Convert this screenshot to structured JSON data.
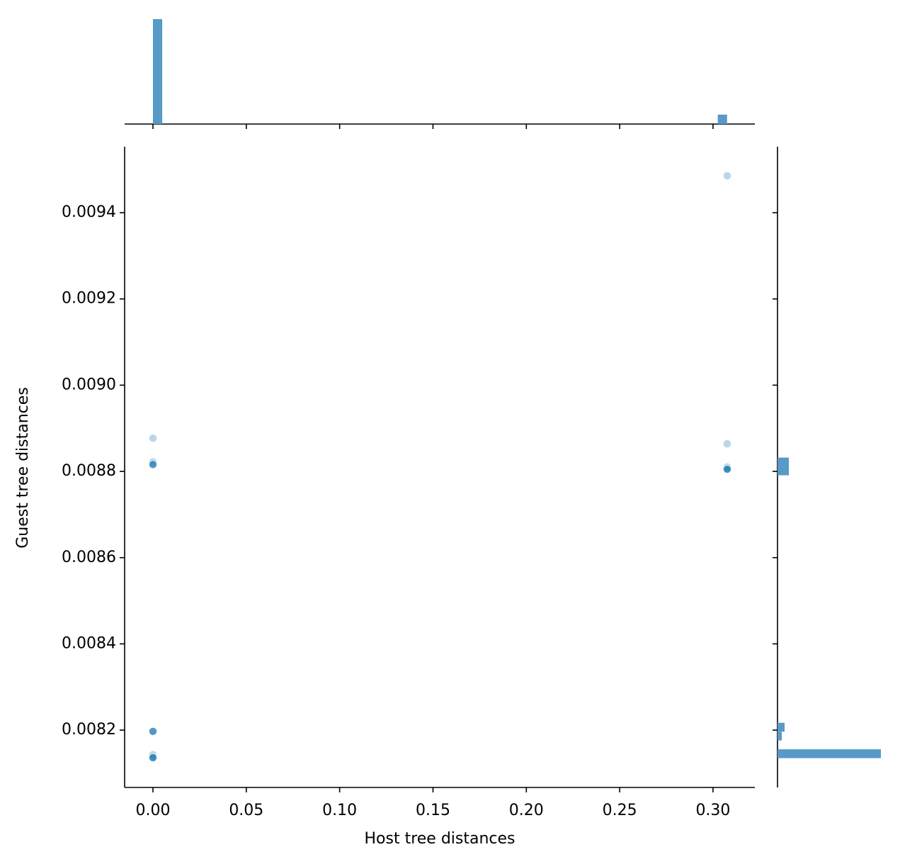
{
  "chart_data": {
    "type": "scatter",
    "xlabel": "Host tree distances",
    "ylabel": "Guest tree distances",
    "x": [
      0,
      0,
      0,
      0,
      0,
      0,
      0,
      0,
      0,
      0,
      0,
      0,
      0,
      0,
      0,
      0,
      0.3076,
      0.3076,
      0.3076,
      0.3076,
      0.3076,
      0.3076,
      0.3076,
      0.3076
    ],
    "y": [
      0.008877,
      0.008822,
      0.008816,
      0.008816,
      0.008816,
      0.008816,
      0.008197,
      0.008197,
      0.008197,
      0.008197,
      0.008143,
      0.008136,
      0.008136,
      0.008136,
      0.008136,
      0.008136,
      0.0094855,
      0.008864,
      0.00881,
      0.008805,
      0.008805,
      0.008805,
      0.008805,
      0.008805
    ],
    "color": "#1f77b4",
    "xlim": [
      -0.01517,
      0.3224
    ],
    "ylim": [
      0.008067,
      0.009553
    ],
    "xticks": [
      {
        "value": 0,
        "label": "0.00"
      },
      0.05,
      {
        "value": 0.1,
        "label": "0.10"
      },
      0.15,
      {
        "value": 0.2,
        "label": "0.20"
      },
      0.25,
      {
        "value": 0.3,
        "label": "0.30"
      }
    ],
    "yticks": [
      0.0082,
      0.0084,
      0.0086,
      0.0088,
      {
        "value": 0.009,
        "label": "0.0090"
      },
      0.0092,
      0.0094
    ],
    "marginal_x": {
      "type": "histogram",
      "color": "#5799c7",
      "count_lim": [
        0,
        89
      ],
      "bins": [
        0,
        0.00496,
        0.00992,
        0.01488,
        0.01984,
        0.0248,
        0.02976,
        0.03472,
        0.03968,
        0.04464,
        0.0496,
        0.05456,
        0.05952,
        0.06448,
        0.06944,
        0.0744,
        0.07936,
        0.08432,
        0.08928,
        0.09424,
        0.0992,
        0.10416,
        0.10912,
        0.11408,
        0.11904,
        0.124,
        0.12896,
        0.13392,
        0.13888,
        0.14384,
        0.1488,
        0.15376,
        0.15872,
        0.16368,
        0.16864,
        0.1736,
        0.17856,
        0.18352,
        0.18848,
        0.19344,
        0.1984,
        0.20336,
        0.20832,
        0.21328,
        0.21824,
        0.2232,
        0.22816,
        0.23312,
        0.23808,
        0.24304,
        0.248,
        0.25296,
        0.25792,
        0.26288,
        0.26784,
        0.2728,
        0.27776,
        0.28272,
        0.28768,
        0.29264,
        0.2976,
        0.30256,
        0.30752
      ],
      "counts": [
        89,
        0,
        0,
        0,
        0,
        0,
        0,
        0,
        0,
        0,
        0,
        0,
        0,
        0,
        0,
        0,
        0,
        0,
        0,
        0,
        0,
        0,
        0,
        0,
        0,
        0,
        0,
        0,
        0,
        0,
        0,
        0,
        0,
        0,
        0,
        0,
        0,
        0,
        0,
        0,
        0,
        0,
        0,
        0,
        0,
        0,
        0,
        0,
        0,
        0,
        0,
        0,
        0,
        0,
        0,
        0,
        0,
        0,
        0,
        0,
        0,
        8
      ]
    },
    "marginal_y": {
      "type": "histogram",
      "color": "#5799c7",
      "count_lim": [
        0,
        73
      ],
      "bins": [
        0.008135,
        0.0081555,
        0.008176,
        0.0081965,
        0.008217,
        0.0082375,
        0.008258,
        0.0082785,
        0.008299,
        0.0083195,
        0.00834,
        0.0083605,
        0.008381,
        0.0084015,
        0.008422,
        0.0084425,
        0.008463,
        0.0084835,
        0.008504,
        0.0085245,
        0.008545,
        0.0085655,
        0.008586,
        0.0086065,
        0.008627,
        0.0086475,
        0.008668,
        0.0086885,
        0.008709,
        0.0087295,
        0.00875,
        0.0087705,
        0.008791,
        0.0088115,
        0.008832,
        0.0088525,
        0.008873,
        0.0088935,
        0.008914,
        0.0089345,
        0.008955,
        0.0089755,
        0.008996,
        0.0090165,
        0.009037,
        0.0090575,
        0.009078,
        0.0090985,
        0.009119,
        0.0091395,
        0.00916,
        0.0091805,
        0.009201,
        0.0092215,
        0.009242,
        0.0092625,
        0.009283,
        0.0093035,
        0.009324,
        0.0093445,
        0.009365,
        0.0093855,
        0.009406,
        0.0094265,
        0.009447,
        0.0094675,
        0.009488
      ],
      "counts": [
        73,
        0,
        3,
        5,
        0,
        0,
        0,
        0,
        0,
        0,
        0,
        0,
        0,
        0,
        0,
        0,
        0,
        0,
        0,
        0,
        0,
        0,
        0,
        0,
        0,
        0,
        0,
        0,
        0,
        0,
        0,
        0,
        8,
        8,
        0,
        0,
        0,
        0,
        0,
        0,
        0,
        0,
        0,
        0,
        0,
        0,
        0,
        0,
        0,
        0,
        0,
        0,
        0,
        0,
        0,
        0,
        0,
        0,
        0,
        0,
        0,
        0,
        0,
        0,
        0,
        0
      ]
    }
  }
}
